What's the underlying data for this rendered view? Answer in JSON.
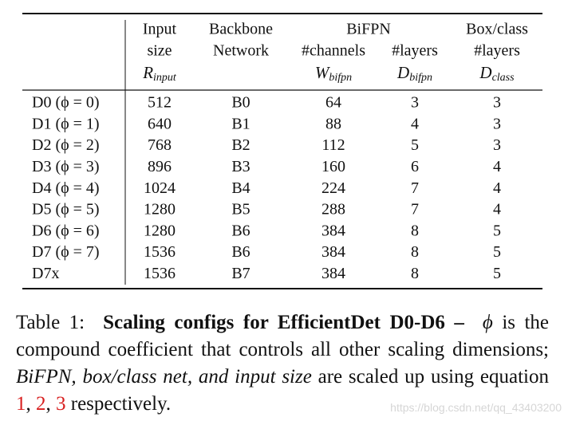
{
  "table": {
    "header": {
      "top": [
        "Input",
        "Backbone",
        "BiFPN",
        "Box/class"
      ],
      "middle": [
        "size",
        "Network",
        "#channels",
        "#layers",
        "#layers"
      ],
      "symbols": [
        {
          "base": "R",
          "sub": "input"
        },
        {
          "base": "W",
          "sub": "bifpn"
        },
        {
          "base": "D",
          "sub": "bifpn"
        },
        {
          "base": "D",
          "sub": "class"
        }
      ]
    },
    "rows": [
      [
        "D0 (ϕ = 0)",
        512,
        "B0",
        64,
        3,
        3
      ],
      [
        "D1 (ϕ = 1)",
        640,
        "B1",
        88,
        4,
        3
      ],
      [
        "D2 (ϕ = 2)",
        768,
        "B2",
        112,
        5,
        3
      ],
      [
        "D3 (ϕ = 3)",
        896,
        "B3",
        160,
        6,
        4
      ],
      [
        "D4 (ϕ = 4)",
        1024,
        "B4",
        224,
        7,
        4
      ],
      [
        "D5 (ϕ = 5)",
        1280,
        "B5",
        288,
        7,
        4
      ],
      [
        "D6 (ϕ = 6)",
        1280,
        "B6",
        384,
        8,
        5
      ],
      [
        "D7 (ϕ = 7)",
        1536,
        "B6",
        384,
        8,
        5
      ],
      [
        "D7x",
        1536,
        "B7",
        384,
        8,
        5
      ]
    ]
  },
  "caption": {
    "label": "Table 1:",
    "bold": "Scaling configs for EfficientDet D0-D6 –",
    "symbol": "ϕ",
    "text": "is the compound coefficient that controls all other scaling dimensions;",
    "italic": "BiFPN, box/class net, and input size",
    "text2": "are scaled up using equation",
    "refs": [
      "1",
      "2",
      "3"
    ],
    "separator": ",",
    "end": "respectively."
  },
  "watermark": "https://blog.csdn.net/qq_43403200"
}
